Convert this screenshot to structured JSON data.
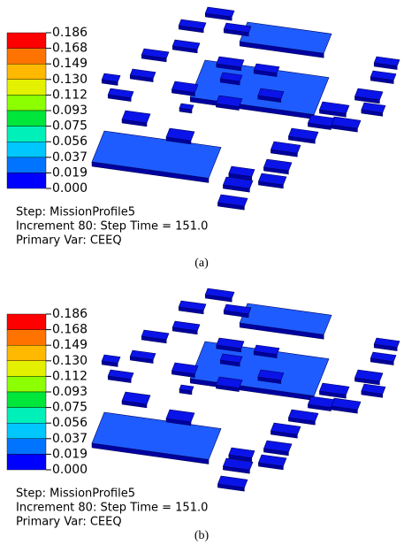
{
  "legend_colors": [
    "#ff0000",
    "#ff7300",
    "#ffb900",
    "#e3f000",
    "#8cff00",
    "#00e63a",
    "#00f0b9",
    "#00c8ff",
    "#0073ff",
    "#0000ff"
  ],
  "panels": [
    {
      "legend": [
        "0.186",
        "0.168",
        "0.149",
        "0.130",
        "0.112",
        "0.093",
        "0.075",
        "0.056",
        "0.037",
        "0.019",
        "0.000"
      ],
      "step": "Step: MissionProfile5",
      "increment": "Increment 80: Step Time = 151.0",
      "variable": "Primary Var: CEEQ",
      "caption": "(a)"
    },
    {
      "legend": [
        "0.186",
        "0.168",
        "0.149",
        "0.130",
        "0.112",
        "0.093",
        "0.075",
        "0.056",
        "0.037",
        "0.019",
        "0.000"
      ],
      "step": "Step: MissionProfile5",
      "increment": "Increment 80: Step Time = 151.0",
      "variable": "Primary Var: CEEQ",
      "caption": "(b)"
    }
  ]
}
